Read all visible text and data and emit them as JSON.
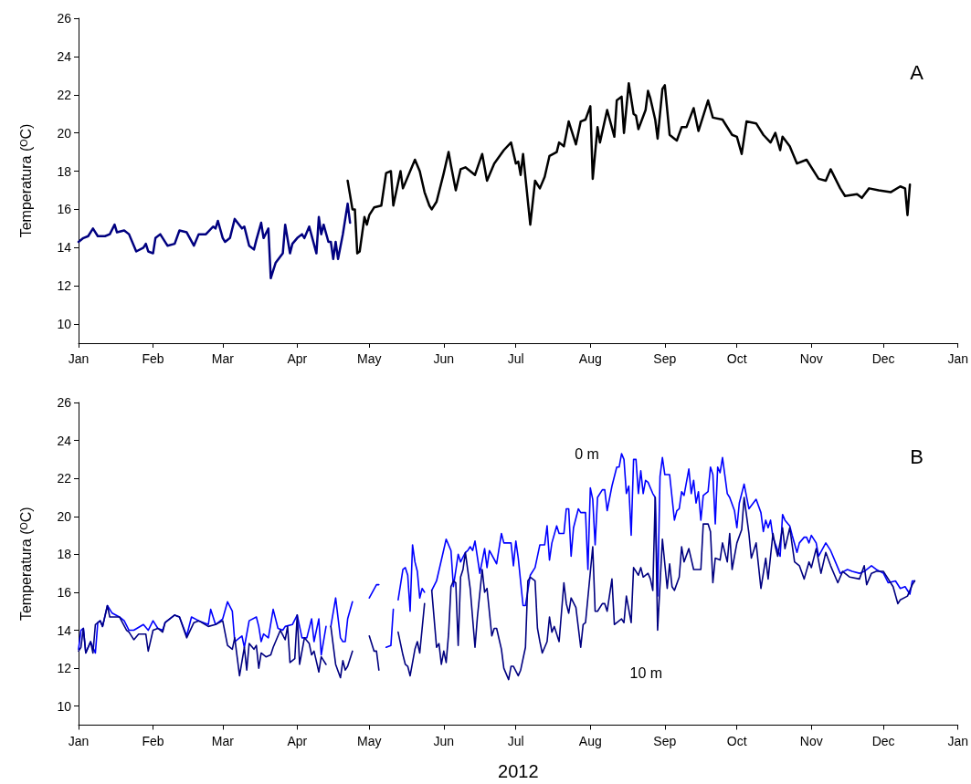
{
  "chart_data": [
    {
      "type": "line",
      "ylabel": "Temperatura (ᴼC)",
      "annotations": [
        "A"
      ],
      "grid": false,
      "marker": "none",
      "xlim": [
        "2012-01-01",
        "2013-01-01"
      ],
      "xticks": [
        {
          "value": "2012-01-01",
          "label": "Jan"
        },
        {
          "value": "2012-02-01",
          "label": "Feb"
        },
        {
          "value": "2012-03-01",
          "label": "Mar"
        },
        {
          "value": "2012-04-01",
          "label": "Apr"
        },
        {
          "value": "2012-05-01",
          "label": "May"
        },
        {
          "value": "2012-06-01",
          "label": "Jun"
        },
        {
          "value": "2012-07-01",
          "label": "Jul"
        },
        {
          "value": "2012-08-01",
          "label": "Aug"
        },
        {
          "value": "2012-09-01",
          "label": "Sep"
        },
        {
          "value": "2012-10-01",
          "label": "Oct"
        },
        {
          "value": "2012-11-01",
          "label": "Nov"
        },
        {
          "value": "2012-12-01",
          "label": "Dec"
        },
        {
          "value": "2013-01-01",
          "label": "Jan"
        }
      ],
      "ylim": [
        9,
        26
      ],
      "yticks": [
        10,
        12,
        14,
        16,
        18,
        20,
        22,
        24,
        26
      ],
      "series": [
        {
          "color": "#000080",
          "x": [
            "2012-01-01",
            "2012-01-03",
            "2012-01-05",
            "2012-01-07",
            "2012-01-09",
            "2012-01-12",
            "2012-01-14",
            "2012-01-16",
            "2012-01-17",
            "2012-01-20",
            "2012-01-22",
            "2012-01-25",
            "2012-01-28",
            "2012-01-29",
            "2012-01-30",
            "2012-02-01",
            "2012-02-02",
            "2012-02-04",
            "2012-02-07",
            "2012-02-10",
            "2012-02-12",
            "2012-02-15",
            "2012-02-18",
            "2012-02-20",
            "2012-02-23",
            "2012-02-26",
            "2012-02-27",
            "2012-02-28",
            "2012-03-01",
            "2012-03-02",
            "2012-03-04",
            "2012-03-06",
            "2012-03-09",
            "2012-03-10",
            "2012-03-12",
            "2012-03-14",
            "2012-03-15",
            "2012-03-17",
            "2012-03-18",
            "2012-03-20",
            "2012-03-21",
            "2012-03-23",
            "2012-03-26",
            "2012-03-27",
            "2012-03-29",
            "2012-03-30",
            "2012-04-01",
            "2012-04-03",
            "2012-04-04",
            "2012-04-06",
            "2012-04-09",
            "2012-04-10",
            "2012-04-11",
            "2012-04-12",
            "2012-04-14",
            "2012-04-15",
            "2012-04-16",
            "2012-04-17",
            "2012-04-18",
            "2012-04-20",
            "2012-04-22",
            "2012-04-23"
          ],
          "values": [
            14.3,
            14.5,
            14.6,
            15.0,
            14.6,
            14.6,
            14.7,
            15.2,
            14.8,
            14.9,
            14.7,
            13.8,
            14.0,
            14.2,
            13.8,
            13.7,
            14.5,
            14.7,
            14.1,
            14.2,
            14.9,
            14.8,
            14.1,
            14.7,
            14.7,
            15.1,
            15.0,
            15.4,
            14.5,
            14.3,
            14.5,
            15.5,
            15.0,
            15.1,
            14.1,
            13.9,
            14.4,
            15.3,
            14.5,
            15.0,
            12.4,
            13.2,
            13.7,
            15.2,
            13.7,
            14.2,
            14.5,
            14.7,
            14.5,
            15.1,
            13.7,
            15.6,
            14.7,
            15.2,
            14.3,
            14.3,
            13.4,
            14.3,
            13.4,
            14.7,
            16.3,
            15.3
          ]
        },
        {
          "color": "#000000",
          "x": [
            "2012-04-22",
            "2012-04-24",
            "2012-04-25",
            "2012-04-26",
            "2012-04-27",
            "2012-04-29",
            "2012-04-30",
            "2012-05-01",
            "2012-05-03",
            "2012-05-06",
            "2012-05-08",
            "2012-05-10",
            "2012-05-11",
            "2012-05-14",
            "2012-05-15",
            "2012-05-20",
            "2012-05-22",
            "2012-05-24",
            "2012-05-26",
            "2012-05-27",
            "2012-05-29",
            "2012-06-01",
            "2012-06-03",
            "2012-06-04",
            "2012-06-06",
            "2012-06-08",
            "2012-06-10",
            "2012-06-14",
            "2012-06-17",
            "2012-06-19",
            "2012-06-22",
            "2012-06-26",
            "2012-06-29",
            "2012-07-01",
            "2012-07-02",
            "2012-07-03",
            "2012-07-04",
            "2012-07-07",
            "2012-07-09",
            "2012-07-11",
            "2012-07-13",
            "2012-07-15",
            "2012-07-18",
            "2012-07-19",
            "2012-07-21",
            "2012-07-23",
            "2012-07-26",
            "2012-07-28",
            "2012-07-30",
            "2012-08-01",
            "2012-08-02",
            "2012-08-04",
            "2012-08-05",
            "2012-08-08",
            "2012-08-11",
            "2012-08-12",
            "2012-08-14",
            "2012-08-15",
            "2012-08-17",
            "2012-08-19",
            "2012-08-20",
            "2012-08-21",
            "2012-08-24",
            "2012-08-25",
            "2012-08-26",
            "2012-08-28",
            "2012-08-29",
            "2012-08-31",
            "2012-09-01",
            "2012-09-03",
            "2012-09-05",
            "2012-09-06",
            "2012-09-08",
            "2012-09-10",
            "2012-09-13",
            "2012-09-15",
            "2012-09-19",
            "2012-09-21",
            "2012-09-25",
            "2012-09-29",
            "2012-10-01",
            "2012-10-03",
            "2012-10-05",
            "2012-10-09",
            "2012-10-12",
            "2012-10-15",
            "2012-10-17",
            "2012-10-19",
            "2012-10-20",
            "2012-10-23",
            "2012-10-26",
            "2012-10-30",
            "2012-11-04",
            "2012-11-07",
            "2012-11-09",
            "2012-11-13",
            "2012-11-15",
            "2012-11-20",
            "2012-11-22",
            "2012-11-25",
            "2012-11-29",
            "2012-12-04",
            "2012-12-08",
            "2012-12-10",
            "2012-12-11",
            "2012-12-12"
          ],
          "values": [
            17.5,
            16.0,
            16.0,
            13.7,
            13.8,
            15.6,
            15.2,
            15.7,
            16.1,
            16.2,
            17.9,
            18.0,
            16.2,
            18.0,
            17.1,
            18.6,
            18.0,
            16.9,
            16.2,
            16.0,
            16.4,
            17.9,
            19.0,
            18.3,
            17.0,
            18.1,
            18.2,
            17.8,
            18.9,
            17.5,
            18.4,
            19.1,
            19.5,
            18.4,
            18.5,
            17.8,
            18.9,
            15.2,
            17.5,
            17.1,
            17.7,
            18.8,
            19.0,
            19.5,
            19.3,
            20.6,
            19.4,
            20.6,
            20.7,
            21.4,
            17.6,
            20.3,
            19.5,
            21.2,
            19.8,
            21.7,
            21.9,
            20.0,
            22.6,
            21.0,
            20.9,
            20.2,
            21.2,
            22.2,
            21.8,
            20.7,
            19.7,
            22.3,
            22.5,
            19.9,
            19.7,
            19.6,
            20.3,
            20.3,
            21.3,
            20.1,
            21.7,
            20.8,
            20.7,
            19.9,
            19.8,
            18.9,
            20.6,
            20.5,
            19.9,
            19.5,
            20.0,
            19.1,
            19.8,
            19.3,
            18.4,
            18.6,
            17.6,
            17.5,
            18.1,
            17.1,
            16.7,
            16.8,
            16.6,
            17.1,
            17.0,
            16.9,
            17.2,
            17.1,
            15.7,
            17.3
          ]
        }
      ]
    },
    {
      "type": "line",
      "xlabel": "2012",
      "ylabel": "Temperatura (ᴼC)",
      "annotations": [
        "B"
      ],
      "grid": false,
      "marker": "none",
      "xlim": [
        "2012-01-01",
        "2013-01-01"
      ],
      "xticks": [
        {
          "value": "2012-01-01",
          "label": "Jan"
        },
        {
          "value": "2012-02-01",
          "label": "Feb"
        },
        {
          "value": "2012-03-01",
          "label": "Mar"
        },
        {
          "value": "2012-04-01",
          "label": "Apr"
        },
        {
          "value": "2012-05-01",
          "label": "May"
        },
        {
          "value": "2012-06-01",
          "label": "Jun"
        },
        {
          "value": "2012-07-01",
          "label": "Jul"
        },
        {
          "value": "2012-08-01",
          "label": "Aug"
        },
        {
          "value": "2012-09-01",
          "label": "Sep"
        },
        {
          "value": "2012-10-01",
          "label": "Oct"
        },
        {
          "value": "2012-11-01",
          "label": "Nov"
        },
        {
          "value": "2012-12-01",
          "label": "Dec"
        },
        {
          "value": "2013-01-01",
          "label": "Jan"
        }
      ],
      "ylim": [
        9,
        26
      ],
      "yticks": [
        10,
        12,
        14,
        16,
        18,
        20,
        22,
        24,
        26
      ],
      "series": [
        {
          "name": "0 m",
          "color": "#0000ff",
          "x": [
            "2012-01-01",
            "2012-01-02",
            "2012-01-03",
            "2012-01-04",
            "2012-01-06",
            "2012-01-08",
            "2012-01-09",
            "2012-01-10",
            "2012-01-11",
            "2012-01-13",
            "2012-01-15",
            "2012-01-18",
            "2012-01-20",
            "2012-01-22",
            "2012-01-24",
            "2012-01-28",
            "2012-01-30",
            "2012-02-01",
            "2012-02-03",
            "2012-02-05",
            "2012-02-06",
            "2012-02-10",
            "2012-02-12",
            "2012-02-15",
            "2012-02-17",
            "2012-02-20",
            "2012-02-24",
            "2012-02-25",
            "2012-02-27",
            "2012-03-01",
            "2012-03-03",
            "2012-03-05",
            "2012-03-06",
            "2012-03-08",
            "2012-03-09",
            "2012-03-10",
            "2012-03-12",
            "2012-03-15",
            "2012-03-16",
            "2012-03-17",
            "2012-03-18",
            "2012-03-20",
            "2012-03-22",
            "2012-03-24",
            "2012-03-26",
            "2012-03-27",
            "2012-03-30",
            "2012-04-01",
            "2012-04-03",
            "2012-04-05",
            "2012-04-07",
            "2012-04-08",
            "2012-04-10",
            "2012-04-11",
            "2012-04-13",
            "2012-04-14",
            "2012-04-15",
            "2012-04-17",
            "2012-04-19",
            "2012-04-20",
            "2012-04-21",
            "2012-04-22",
            "2012-04-24",
            "2012-04-27",
            "2012-05-01",
            "2012-05-04",
            "2012-05-05",
            "2012-05-07",
            "2012-05-08",
            "2012-05-10",
            "2012-05-11",
            "2012-05-12",
            "2012-05-13",
            "2012-05-15",
            "2012-05-16",
            "2012-05-17",
            "2012-05-18",
            "2012-05-19",
            "2012-05-20",
            "2012-05-21",
            "2012-05-22",
            "2012-05-23",
            "2012-05-24",
            "2012-05-25",
            "2012-05-27",
            "2012-05-29",
            "2012-06-02",
            "2012-06-04",
            "2012-06-05",
            "2012-06-07",
            "2012-06-08",
            "2012-06-10",
            "2012-06-11",
            "2012-06-12",
            "2012-06-13",
            "2012-06-14",
            "2012-06-16",
            "2012-06-18",
            "2012-06-19",
            "2012-06-20",
            "2012-06-23",
            "2012-06-25",
            "2012-06-26",
            "2012-06-29",
            "2012-06-30",
            "2012-07-01",
            "2012-07-02",
            "2012-07-04",
            "2012-07-05",
            "2012-07-07",
            "2012-07-09",
            "2012-07-11",
            "2012-07-13",
            "2012-07-14",
            "2012-07-15",
            "2012-07-16",
            "2012-07-18",
            "2012-07-19",
            "2012-07-21",
            "2012-07-22",
            "2012-07-23",
            "2012-07-24",
            "2012-07-25",
            "2012-07-27",
            "2012-07-28",
            "2012-07-30",
            "2012-07-31",
            "2012-08-01",
            "2012-08-02",
            "2012-08-03",
            "2012-08-04",
            "2012-08-06",
            "2012-08-07",
            "2012-08-08",
            "2012-08-10",
            "2012-08-12",
            "2012-08-13",
            "2012-08-14",
            "2012-08-15",
            "2012-08-16",
            "2012-08-17",
            "2012-08-18",
            "2012-08-19",
            "2012-08-20",
            "2012-08-21",
            "2012-08-22",
            "2012-08-23",
            "2012-08-24",
            "2012-08-25",
            "2012-08-27",
            "2012-08-28",
            "2012-08-29",
            "2012-08-30",
            "2012-08-31",
            "2012-09-01",
            "2012-09-03",
            "2012-09-05",
            "2012-09-06",
            "2012-09-07",
            "2012-09-08",
            "2012-09-09",
            "2012-09-11",
            "2012-09-12",
            "2012-09-13",
            "2012-09-14",
            "2012-09-15",
            "2012-09-16",
            "2012-09-17",
            "2012-09-19",
            "2012-09-20",
            "2012-09-21",
            "2012-09-22",
            "2012-09-23",
            "2012-09-24",
            "2012-09-25",
            "2012-09-27",
            "2012-09-28",
            "2012-09-30",
            "2012-10-01",
            "2012-10-02",
            "2012-10-04",
            "2012-10-06",
            "2012-10-09",
            "2012-10-11",
            "2012-10-12",
            "2012-10-13",
            "2012-10-14",
            "2012-10-15",
            "2012-10-16",
            "2012-10-18",
            "2012-10-19",
            "2012-10-20",
            "2012-10-21",
            "2012-10-23",
            "2012-10-24",
            "2012-10-26",
            "2012-10-27",
            "2012-10-29",
            "2012-10-30",
            "2012-10-31",
            "2012-11-01",
            "2012-11-03",
            "2012-11-04",
            "2012-11-07",
            "2012-11-09",
            "2012-11-11",
            "2012-11-13",
            "2012-11-16",
            "2012-11-18",
            "2012-11-21",
            "2012-11-23",
            "2012-11-26",
            "2012-11-28",
            "2012-12-01",
            "2012-12-03",
            "2012-12-06",
            "2012-12-08",
            "2012-12-10",
            "2012-12-12",
            "2012-12-13",
            "2012-12-14"
          ],
          "values": [
            13.0,
            14.0,
            14.1,
            12.8,
            13.4,
            12.8,
            14.4,
            14.5,
            14.2,
            15.3,
            14.9,
            14.7,
            14.5,
            14.0,
            14.0,
            14.3,
            14.0,
            14.5,
            14.1,
            14.0,
            14.4,
            14.8,
            14.7,
            13.7,
            14.7,
            14.5,
            14.3,
            15.1,
            14.3,
            14.6,
            15.5,
            15.0,
            13.4,
            13.6,
            13.7,
            13.1,
            14.5,
            14.7,
            14.2,
            13.4,
            13.8,
            13.6,
            15.1,
            14.1,
            14.0,
            14.2,
            14.3,
            14.8,
            13.6,
            13.6,
            14.6,
            13.4,
            14.6,
            12.7,
            14.2,
            null,
            14.2,
            15.7,
            13.6,
            13.4,
            13.4,
            14.6,
            15.5,
            null,
            15.7,
            16.4,
            16.4,
            null,
            13.1,
            13.2,
            15.1,
            null,
            15.6,
            17.2,
            17.3,
            16.9,
            15.0,
            18.5,
            17.6,
            17.1,
            15.7,
            16.2,
            16.0,
            null,
            16.1,
            16.6,
            18.8,
            18.2,
            16.3,
            18.0,
            17.6,
            18.1,
            18.2,
            18.4,
            18.2,
            18.7,
            17.0,
            18.3,
            17.3,
            18.2,
            17.5,
            19.1,
            18.6,
            18.6,
            17.4,
            18.7,
            17.8,
            15.3,
            15.3,
            16.9,
            17.3,
            18.5,
            18.5,
            19.5,
            17.7,
            18.6,
            19.5,
            19.1,
            19.1,
            20.4,
            20.4,
            17.9,
            19.4,
            20.4,
            20.2,
            20.2,
            17.2,
            21.5,
            20.9,
            18.5,
            21.0,
            21.4,
            21.4,
            20.3,
            21.6,
            22.6,
            22.6,
            23.3,
            23.0,
            21.2,
            21.6,
            19.0,
            23.0,
            23.0,
            21.2,
            22.4,
            21.2,
            21.9,
            21.8,
            21.2,
            21.0,
            15.8,
            22.1,
            23.1,
            22.2,
            22.2,
            19.8,
            20.3,
            20.4,
            21.3,
            21.1,
            22.5,
            21.2,
            21.9,
            20.7,
            21.3,
            19.8,
            21.1,
            21.3,
            22.6,
            22.2,
            19.6,
            22.6,
            22.3,
            23.1,
            21.2,
            21.0,
            20.3,
            19.4,
            20.7,
            21.7,
            20.4,
            20.9,
            20.2,
            19.2,
            19.8,
            19.4,
            19.8,
            18.9,
            18.2,
            17.9,
            20.1,
            19.8,
            19.5,
            19.0,
            18.1,
            18.6,
            18.9,
            18.9,
            18.6,
            19.0,
            18.6,
            17.9,
            18.6,
            18.2,
            17.6,
            17.0,
            17.2,
            17.1,
            17.0,
            17.1,
            17.4,
            17.2,
            17.0,
            16.5,
            16.6,
            16.2,
            16.3,
            15.9,
            16.6,
            16.6
          ]
        },
        {
          "name": "10 m",
          "color": "#000080",
          "x": [
            "2012-01-01",
            "2012-01-02",
            "2012-01-03",
            "2012-01-04",
            "2012-01-06",
            "2012-01-07",
            "2012-01-08",
            "2012-01-10",
            "2012-01-11",
            "2012-01-13",
            "2012-01-14",
            "2012-01-18",
            "2012-01-21",
            "2012-01-22",
            "2012-01-24",
            "2012-01-26",
            "2012-01-29",
            "2012-01-30",
            "2012-02-01",
            "2012-02-03",
            "2012-02-05",
            "2012-02-06",
            "2012-02-10",
            "2012-02-12",
            "2012-02-15",
            "2012-02-18",
            "2012-02-20",
            "2012-02-24",
            "2012-02-27",
            "2012-03-01",
            "2012-03-03",
            "2012-03-05",
            "2012-03-06",
            "2012-03-08",
            "2012-03-10",
            "2012-03-11",
            "2012-03-12",
            "2012-03-14",
            "2012-03-15",
            "2012-03-16",
            "2012-03-17",
            "2012-03-19",
            "2012-03-21",
            "2012-03-22",
            "2012-03-25",
            "2012-03-27",
            "2012-03-28",
            "2012-03-29",
            "2012-03-31",
            "2012-04-01",
            "2012-04-02",
            "2012-04-04",
            "2012-04-06",
            "2012-04-07",
            "2012-04-08",
            "2012-04-10",
            "2012-04-11",
            "2012-04-13",
            "2012-04-14",
            "2012-04-15",
            "2012-04-17",
            "2012-04-19",
            "2012-04-20",
            "2012-04-21",
            "2012-04-22",
            "2012-04-24",
            "2012-04-27",
            "2012-05-01",
            "2012-05-03",
            "2012-05-04",
            "2012-05-05",
            "2012-05-07",
            "2012-05-13",
            "2012-05-15",
            "2012-05-16",
            "2012-05-17",
            "2012-05-18",
            "2012-05-20",
            "2012-05-21",
            "2012-05-22",
            "2012-05-24",
            "2012-05-25",
            "2012-05-27",
            "2012-05-29",
            "2012-05-30",
            "2012-05-31",
            "2012-06-01",
            "2012-06-02",
            "2012-06-03",
            "2012-06-04",
            "2012-06-05",
            "2012-06-06",
            "2012-06-07",
            "2012-06-08",
            "2012-06-09",
            "2012-06-10",
            "2012-06-12",
            "2012-06-14",
            "2012-06-15",
            "2012-06-17",
            "2012-06-18",
            "2012-06-19",
            "2012-06-21",
            "2012-06-22",
            "2012-06-23",
            "2012-06-25",
            "2012-06-26",
            "2012-06-28",
            "2012-06-29",
            "2012-06-30",
            "2012-07-02",
            "2012-07-03",
            "2012-07-05",
            "2012-07-06",
            "2012-07-07",
            "2012-07-09",
            "2012-07-10",
            "2012-07-11",
            "2012-07-12",
            "2012-07-14",
            "2012-07-15",
            "2012-07-16",
            "2012-07-17",
            "2012-07-19",
            "2012-07-21",
            "2012-07-22",
            "2012-07-23",
            "2012-07-24",
            "2012-07-26",
            "2012-07-28",
            "2012-07-29",
            "2012-07-30",
            "2012-08-02",
            "2012-08-03",
            "2012-08-04",
            "2012-08-06",
            "2012-08-07",
            "2012-08-08",
            "2012-08-10",
            "2012-08-11",
            "2012-08-13",
            "2012-08-14",
            "2012-08-15",
            "2012-08-16",
            "2012-08-18",
            "2012-08-19",
            "2012-08-21",
            "2012-08-22",
            "2012-08-23",
            "2012-08-25",
            "2012-08-26",
            "2012-08-27",
            "2012-08-28",
            "2012-08-29",
            "2012-08-31",
            "2012-09-02",
            "2012-09-03",
            "2012-09-04",
            "2012-09-05",
            "2012-09-07",
            "2012-09-08",
            "2012-09-09",
            "2012-09-11",
            "2012-09-13",
            "2012-09-16",
            "2012-09-17",
            "2012-09-19",
            "2012-09-20",
            "2012-09-21",
            "2012-09-22",
            "2012-09-24",
            "2012-09-25",
            "2012-09-27",
            "2012-09-28",
            "2012-09-29",
            "2012-10-01",
            "2012-10-03",
            "2012-10-04",
            "2012-10-06",
            "2012-10-07",
            "2012-10-09",
            "2012-10-11",
            "2012-10-13",
            "2012-10-14",
            "2012-10-16",
            "2012-10-17",
            "2012-10-18",
            "2012-10-20",
            "2012-10-21",
            "2012-10-23",
            "2012-10-25",
            "2012-10-27",
            "2012-10-29",
            "2012-10-31",
            "2012-11-01",
            "2012-11-03",
            "2012-11-05",
            "2012-11-07",
            "2012-11-09",
            "2012-11-12",
            "2012-11-14",
            "2012-11-17",
            "2012-11-21",
            "2012-11-23",
            "2012-11-24",
            "2012-11-26",
            "2012-11-28",
            "2012-12-01",
            "2012-12-05",
            "2012-12-07",
            "2012-12-08",
            "2012-12-11",
            "2012-12-13",
            "2012-12-14"
          ],
          "values": [
            12.9,
            13.1,
            14.1,
            12.8,
            13.4,
            12.8,
            14.3,
            14.5,
            14.2,
            15.3,
            14.7,
            14.7,
            14.0,
            13.9,
            13.5,
            13.8,
            13.8,
            12.9,
            14.0,
            14.1,
            13.9,
            14.4,
            14.8,
            14.7,
            13.6,
            14.4,
            14.5,
            14.2,
            14.3,
            14.5,
            13.2,
            13.0,
            13.6,
            11.6,
            13.1,
            11.9,
            13.3,
            13.0,
            13.2,
            12.0,
            12.8,
            12.6,
            12.7,
            13.1,
            14.0,
            13.5,
            14.2,
            12.3,
            12.5,
            14.8,
            12.2,
            13.6,
            13.3,
            12.7,
            12.9,
            11.8,
            12.6,
            12.2,
            null,
            14.2,
            12.2,
            11.5,
            12.4,
            11.9,
            12.1,
            12.9,
            null,
            13.7,
            12.9,
            12.9,
            11.9,
            null,
            13.9,
            12.7,
            12.2,
            12.1,
            11.6,
            13.0,
            13.4,
            12.8,
            15.4,
            null,
            16.1,
            13.1,
            13.3,
            12.2,
            12.9,
            12.3,
            13.8,
            16.3,
            16.6,
            16.5,
            13.2,
            16.8,
            17.2,
            18.1,
            16.2,
            13.1,
            14.7,
            17.2,
            16.0,
            16.2,
            13.7,
            14.1,
            14.1,
            13.0,
            12.0,
            11.4,
            12.1,
            12.1,
            11.6,
            11.9,
            13.1,
            16.6,
            16.8,
            16.6,
            14.1,
            13.4,
            12.8,
            13.4,
            14.7,
            13.9,
            14.2,
            13.4,
            16.5,
            15.4,
            14.9,
            15.7,
            15.2,
            13.1,
            14.3,
            14.4,
            18.4,
            15.0,
            15.0,
            15.4,
            15.4,
            15.0,
            16.7,
            14.3,
            14.5,
            14.6,
            14.4,
            15.8,
            14.4,
            17.3,
            16.9,
            17.3,
            16.8,
            17.0,
            16.7,
            16.1,
            21.0,
            14.0,
            18.8,
            16.2,
            17.5,
            16.3,
            16.1,
            16.8,
            18.4,
            17.6,
            18.3,
            17.2,
            17.2,
            19.6,
            19.6,
            19.2,
            16.5,
            17.8,
            17.7,
            18.6,
            17.6,
            19.1,
            17.2,
            18.6,
            19.3,
            21.0,
            19.1,
            17.8,
            18.6,
            16.2,
            17.8,
            16.7,
            19.1,
            18.4,
            17.9,
            19.4,
            18.3,
            19.4,
            17.6,
            17.4,
            16.7,
            17.6,
            17.3,
            18.3,
            17.0,
            18.1,
            17.4,
            16.5,
            17.1,
            16.8,
            16.7,
            17.4,
            16.4,
            17.0,
            17.1,
            17.1,
            16.3,
            15.4,
            15.6,
            15.8,
            16.4,
            16.6
          ]
        }
      ]
    }
  ]
}
